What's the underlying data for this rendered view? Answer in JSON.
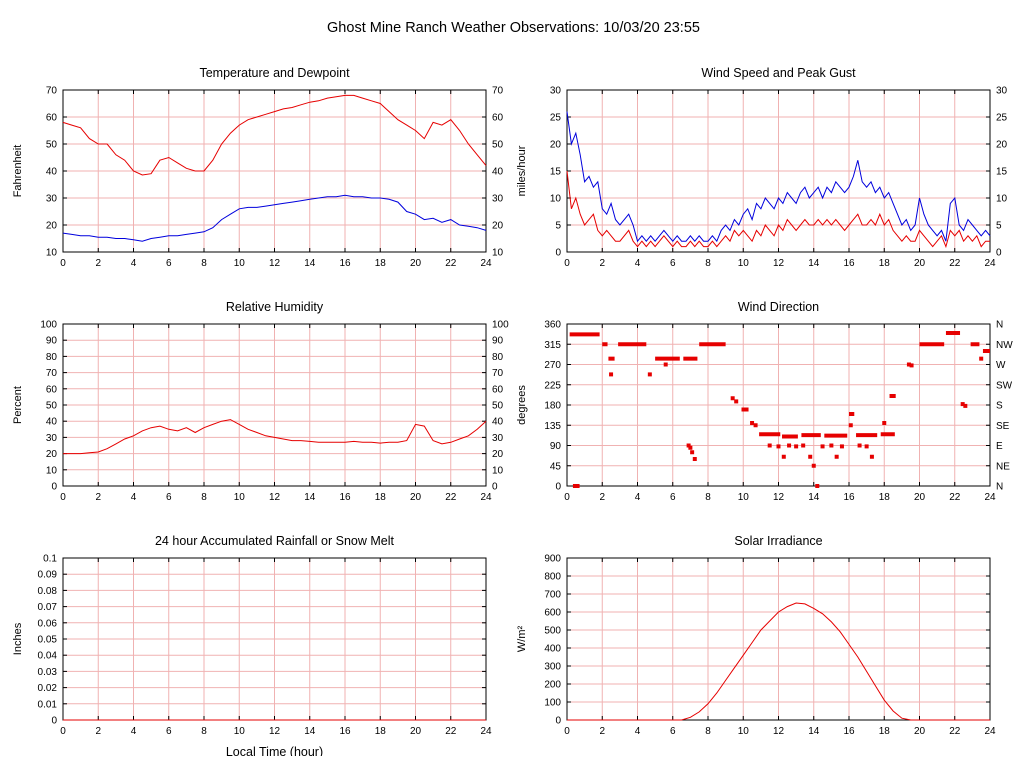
{
  "header": {
    "title": "Ghost Mine Ranch Weather Observations: 10/03/20 23:55"
  },
  "colors": {
    "grid": "#f0b2b2",
    "axis": "#000000",
    "red": "#e60000",
    "blue": "#0000dd"
  },
  "x_axis": {
    "min": 0,
    "max": 24,
    "tick_step": 2,
    "label": "Local Time (hour)"
  },
  "chart_data": [
    {
      "id": "temperature-dewpoint",
      "type": "line",
      "title": "Temperature and Dewpoint",
      "ylabel": "Fahrenheit",
      "ylim": [
        10,
        70
      ],
      "ytick_step": 10,
      "right_labels": "values",
      "x_step": 0.5,
      "series": [
        {
          "name": "temperature",
          "color": "red",
          "values": [
            58,
            57,
            56,
            52,
            50,
            50,
            46,
            44,
            40,
            38.5,
            39,
            44,
            45,
            43,
            41,
            40,
            40,
            44,
            50,
            54,
            57,
            59,
            60,
            61,
            62,
            63,
            63.5,
            64.5,
            65.5,
            66,
            67,
            67.5,
            68,
            68,
            67,
            66,
            65,
            62,
            59,
            57,
            55,
            52,
            58,
            57,
            59,
            55,
            50,
            46,
            42
          ]
        },
        {
          "name": "dewpoint",
          "color": "blue",
          "values": [
            17,
            16.5,
            16,
            16,
            15.5,
            15.5,
            15,
            15,
            14.5,
            14,
            15,
            15.5,
            16,
            16,
            16.5,
            17,
            17.5,
            19,
            22,
            24,
            26,
            26.5,
            26.5,
            27,
            27.5,
            28,
            28.5,
            29,
            29.5,
            30,
            30.5,
            30.5,
            31,
            30.5,
            30.5,
            30,
            30,
            29.5,
            28.5,
            25,
            24,
            22,
            22.5,
            21,
            22,
            20,
            19.5,
            19,
            18
          ]
        }
      ]
    },
    {
      "id": "wind-speed-gust",
      "type": "line",
      "title": "Wind Speed and Peak Gust",
      "ylabel": "miles/hour",
      "ylim": [
        0,
        30
      ],
      "ytick_step": 5,
      "right_labels": "values",
      "x_step": 0.25,
      "series": [
        {
          "name": "peak_gust",
          "color": "blue",
          "values": [
            26,
            20,
            22,
            18,
            13,
            14,
            12,
            13,
            8,
            7,
            9,
            6,
            5,
            6,
            7,
            5,
            2,
            3,
            2,
            3,
            2,
            3,
            4,
            3,
            2,
            3,
            2,
            2,
            3,
            2,
            3,
            2,
            2,
            3,
            2,
            4,
            5,
            4,
            6,
            5,
            7,
            8,
            6,
            9,
            8,
            10,
            9,
            8,
            10,
            9,
            11,
            10,
            9,
            11,
            12,
            10,
            11,
            12,
            10,
            12,
            11,
            13,
            12,
            11,
            12,
            14,
            17,
            13,
            12,
            13,
            11,
            12,
            10,
            11,
            9,
            7,
            5,
            6,
            4,
            5,
            10,
            7,
            5,
            4,
            3,
            4,
            2,
            9,
            10,
            5,
            4,
            6,
            5,
            4,
            3,
            4,
            3
          ]
        },
        {
          "name": "wind_speed",
          "color": "red",
          "values": [
            15,
            8,
            10,
            7,
            5,
            6,
            7,
            4,
            3,
            4,
            3,
            2,
            2,
            3,
            4,
            2,
            1,
            2,
            1,
            2,
            1,
            2,
            3,
            2,
            1,
            2,
            1,
            1,
            2,
            1,
            2,
            1,
            1,
            2,
            1,
            2,
            3,
            2,
            4,
            3,
            4,
            3,
            2,
            4,
            3,
            5,
            4,
            3,
            5,
            4,
            6,
            5,
            4,
            5,
            6,
            5,
            5,
            6,
            5,
            6,
            5,
            6,
            5,
            4,
            5,
            6,
            7,
            5,
            5,
            6,
            5,
            7,
            5,
            6,
            4,
            3,
            2,
            3,
            2,
            2,
            4,
            3,
            2,
            1,
            2,
            3,
            1,
            4,
            3,
            4,
            2,
            3,
            2,
            3,
            1,
            2,
            2
          ]
        }
      ]
    },
    {
      "id": "relative-humidity",
      "type": "line",
      "title": "Relative Humidity",
      "ylabel": "Percent",
      "ylim": [
        0,
        100
      ],
      "ytick_step": 10,
      "right_labels": "values",
      "x_step": 0.5,
      "series": [
        {
          "name": "humidity",
          "color": "red",
          "values": [
            20,
            20,
            20,
            20.5,
            21,
            23,
            26,
            29,
            31,
            34,
            36,
            37,
            35,
            34,
            36,
            33,
            36,
            38,
            40,
            41,
            38,
            35,
            33,
            31,
            30,
            29,
            28,
            28,
            27.5,
            27,
            27,
            27,
            27,
            27.5,
            27,
            27,
            26.5,
            27,
            27,
            28,
            38,
            37,
            28,
            26,
            27,
            29,
            31,
            35,
            40
          ]
        }
      ]
    },
    {
      "id": "wind-direction",
      "type": "scatter",
      "title": "Wind Direction",
      "ylabel": "degrees",
      "ylim": [
        0,
        360
      ],
      "ytick_step": 45,
      "right_labels": [
        "N",
        "NE",
        "E",
        "SE",
        "S",
        "SW",
        "W",
        "NW",
        "N"
      ],
      "segments": [
        [
          0.15,
          1.85,
          337
        ],
        [
          2.0,
          2.3,
          315
        ],
        [
          2.35,
          2.7,
          283
        ],
        [
          2.9,
          4.5,
          315
        ],
        [
          5.0,
          6.4,
          283
        ],
        [
          6.6,
          7.4,
          283
        ],
        [
          7.5,
          9.0,
          315
        ],
        [
          9.9,
          10.3,
          170
        ],
        [
          10.9,
          12.1,
          115
        ],
        [
          12.2,
          13.1,
          110
        ],
        [
          13.3,
          14.4,
          113
        ],
        [
          14.6,
          15.9,
          112
        ],
        [
          16.0,
          16.3,
          160
        ],
        [
          16.4,
          17.6,
          113
        ],
        [
          17.8,
          18.6,
          115
        ],
        [
          18.3,
          18.65,
          200
        ],
        [
          20.0,
          21.4,
          315
        ],
        [
          21.5,
          22.3,
          340
        ],
        [
          22.9,
          23.4,
          315
        ],
        [
          23.6,
          24.0,
          300
        ]
      ],
      "dots": [
        [
          0.45,
          0
        ],
        [
          0.6,
          0
        ],
        [
          2.5,
          248
        ],
        [
          4.7,
          248
        ],
        [
          5.6,
          270
        ],
        [
          6.9,
          90
        ],
        [
          7.0,
          85
        ],
        [
          7.1,
          75
        ],
        [
          7.25,
          60
        ],
        [
          9.4,
          195
        ],
        [
          9.6,
          188
        ],
        [
          10.5,
          140
        ],
        [
          10.7,
          135
        ],
        [
          11.5,
          90
        ],
        [
          12.0,
          88
        ],
        [
          12.3,
          65
        ],
        [
          12.6,
          90
        ],
        [
          13.0,
          88
        ],
        [
          13.4,
          90
        ],
        [
          13.8,
          65
        ],
        [
          14.0,
          45
        ],
        [
          14.2,
          0
        ],
        [
          14.5,
          88
        ],
        [
          15.0,
          90
        ],
        [
          15.3,
          65
        ],
        [
          15.6,
          88
        ],
        [
          16.1,
          135
        ],
        [
          16.6,
          90
        ],
        [
          17.0,
          88
        ],
        [
          17.3,
          65
        ],
        [
          18.0,
          140
        ],
        [
          19.4,
          270
        ],
        [
          19.55,
          268
        ],
        [
          22.45,
          182
        ],
        [
          22.6,
          178
        ],
        [
          23.5,
          283
        ]
      ]
    },
    {
      "id": "rainfall",
      "type": "line",
      "title": "24 hour Accumulated Rainfall or Snow Melt",
      "ylabel": "Inches",
      "ylim": [
        0,
        0.1
      ],
      "ytick_step": 0.01,
      "ytick_labels": [
        "0",
        "0.01",
        "0.02",
        "0.03",
        "0.04",
        "0.05",
        "0.06",
        "0.07",
        "0.08",
        "0.09",
        "0.1"
      ],
      "right_labels": "none",
      "xlabel": "Local Time (hour)",
      "x_step": 24,
      "series": [
        {
          "name": "rainfall",
          "color": "red",
          "values": [
            0,
            0
          ]
        }
      ]
    },
    {
      "id": "solar-irradiance",
      "type": "line",
      "title": "Solar Irradiance",
      "ylabel": "W/m²",
      "ylim": [
        0,
        900
      ],
      "ytick_step": 100,
      "right_labels": "none",
      "x_step": 0.5,
      "series": [
        {
          "name": "irradiance",
          "color": "red",
          "values": [
            0,
            0,
            0,
            0,
            0,
            0,
            0,
            0,
            0,
            0,
            0,
            0,
            0,
            0,
            15,
            45,
            90,
            150,
            220,
            290,
            360,
            430,
            500,
            550,
            600,
            630,
            650,
            645,
            620,
            590,
            545,
            490,
            420,
            350,
            270,
            190,
            110,
            50,
            10,
            0,
            0,
            0,
            0,
            0,
            0,
            0,
            0,
            0,
            0
          ]
        }
      ]
    }
  ]
}
